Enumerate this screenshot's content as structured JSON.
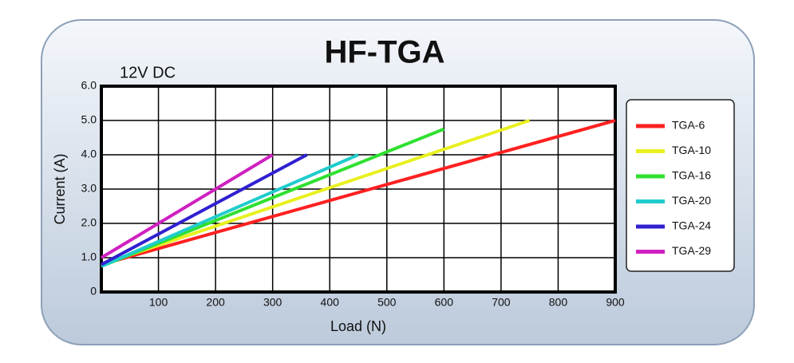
{
  "chart_data": {
    "type": "line",
    "title": "HF-TGA",
    "annotation": "12V DC",
    "x_label": "Load (N)",
    "y_label": "Current (A)",
    "xlim": [
      0,
      900
    ],
    "xticks": [
      100,
      200,
      300,
      400,
      500,
      600,
      700,
      800,
      900
    ],
    "ylim": [
      0,
      6
    ],
    "yticks": [
      0,
      {
        "value": 1,
        "label": "1.0"
      },
      {
        "value": 2,
        "label": "2.0"
      },
      {
        "value": 3,
        "label": "3.0"
      },
      {
        "value": 4,
        "label": "4.0"
      },
      {
        "value": 5,
        "label": "5.0"
      },
      {
        "value": 6,
        "label": "6.0"
      }
    ],
    "grid": true,
    "legend": "right",
    "series": [
      {
        "name": "TGA-6",
        "color": "#ff2020",
        "x": [
          0,
          900
        ],
        "values": [
          0.8,
          5.0
        ]
      },
      {
        "name": "TGA-10",
        "color": "#e8f020",
        "x": [
          0,
          750
        ],
        "values": [
          0.8,
          5.0
        ]
      },
      {
        "name": "TGA-16",
        "color": "#30e030",
        "x": [
          0,
          600
        ],
        "values": [
          0.75,
          4.75
        ]
      },
      {
        "name": "TGA-20",
        "color": "#20cccc",
        "x": [
          0,
          450
        ],
        "values": [
          0.75,
          4.0
        ]
      },
      {
        "name": "TGA-24",
        "color": "#3020d0",
        "x": [
          0,
          360
        ],
        "values": [
          0.8,
          4.0
        ]
      },
      {
        "name": "TGA-29",
        "color": "#d020c0",
        "x": [
          0,
          300
        ],
        "values": [
          1.0,
          4.0
        ]
      }
    ]
  }
}
